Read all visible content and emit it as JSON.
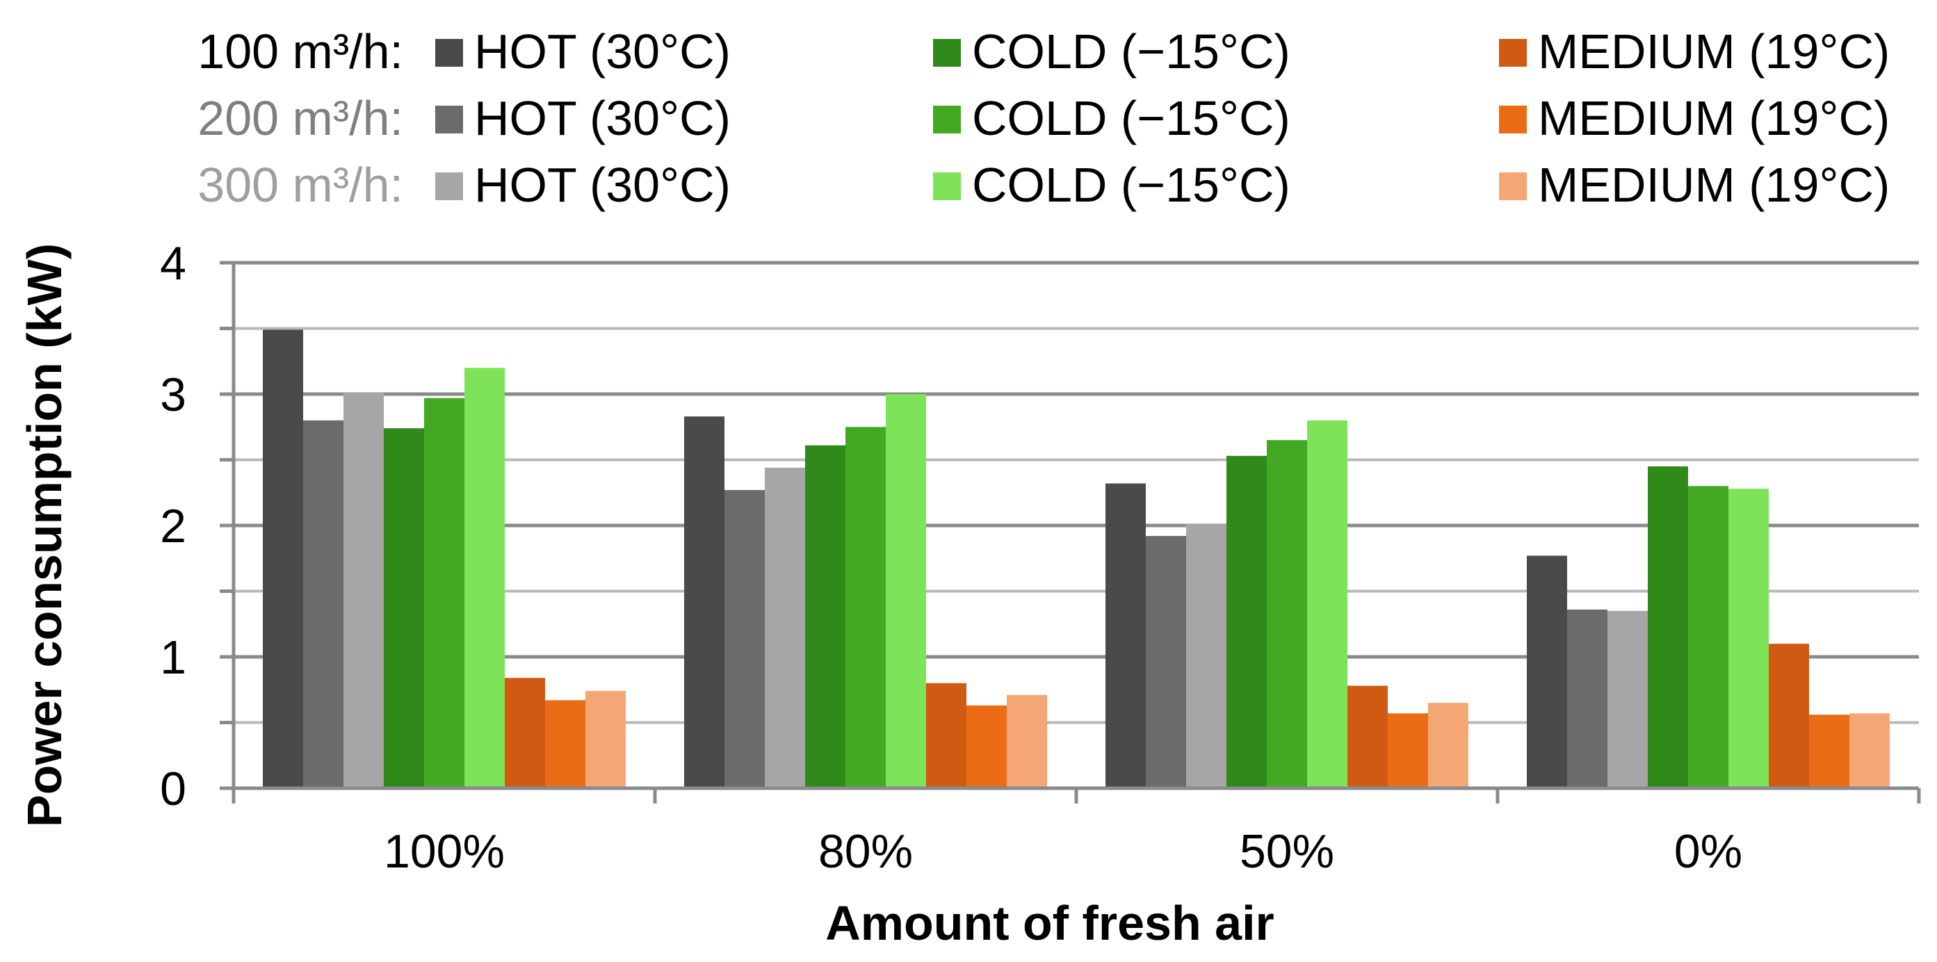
{
  "chart_data": {
    "type": "bar",
    "xlabel": "Amount of fresh air",
    "ylabel": "Power consumption (kW)",
    "ylim": [
      0,
      4
    ],
    "yticks": [
      "0",
      "1",
      "2",
      "3",
      "4"
    ],
    "grid": true,
    "legend_position": "top",
    "categories": [
      "100%",
      "80%",
      "50%",
      "0%"
    ],
    "legend_rows": [
      {
        "label": "100 m³/h:",
        "label_color": "#000000"
      },
      {
        "label": "200 m³/h:",
        "label_color": "#7f7f7f"
      },
      {
        "label": "300 m³/h:",
        "label_color": "#9f9f9f"
      }
    ],
    "series": [
      {
        "name": "HOT (30°C)",
        "flow": "100 m³/h",
        "color": "#4a4a4a",
        "values": [
          3.49,
          2.83,
          2.32,
          1.77
        ]
      },
      {
        "name": "HOT (30°C)",
        "flow": "200 m³/h",
        "color": "#6b6b6b",
        "values": [
          2.8,
          2.27,
          1.92,
          1.36
        ]
      },
      {
        "name": "HOT (30°C)",
        "flow": "300 m³/h",
        "color": "#a6a6a6",
        "values": [
          3.01,
          2.44,
          2.01,
          1.35
        ]
      },
      {
        "name": "COLD (−15°C)",
        "flow": "100 m³/h",
        "color": "#2f8a1a",
        "values": [
          2.74,
          2.61,
          2.53,
          2.45
        ]
      },
      {
        "name": "COLD (−15°C)",
        "flow": "200 m³/h",
        "color": "#43a822",
        "values": [
          2.97,
          2.75,
          2.65,
          2.3
        ]
      },
      {
        "name": "COLD (−15°C)",
        "flow": "300 m³/h",
        "color": "#7fe35a",
        "values": [
          3.2,
          3.0,
          2.8,
          2.28
        ]
      },
      {
        "name": "MEDIUM (19°C)",
        "flow": "100 m³/h",
        "color": "#d05a12",
        "values": [
          0.84,
          0.8,
          0.78,
          1.1
        ]
      },
      {
        "name": "MEDIUM (19°C)",
        "flow": "200 m³/h",
        "color": "#ec6c16",
        "values": [
          0.67,
          0.63,
          0.57,
          0.56
        ]
      },
      {
        "name": "MEDIUM (19°C)",
        "flow": "300 m³/h",
        "color": "#f4a774",
        "values": [
          0.74,
          0.71,
          0.65,
          0.57
        ]
      }
    ]
  }
}
